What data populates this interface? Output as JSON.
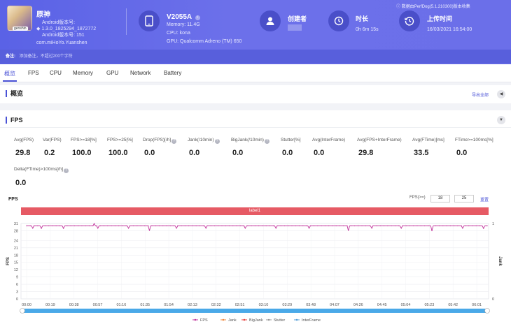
{
  "header": {
    "game_name": "原神",
    "android_version_label": "Android版本号:",
    "app_version": "1.3.0_1825294_1872772",
    "android_version_line": "Android版本号: 151",
    "package_name": "com.miHoYo.Yuanshen",
    "avatar_tag": "genshin",
    "device_name": "V2055A",
    "memory": "Memory: 11.4G",
    "cpu": "CPU: kona",
    "gpu": "GPU: Qualcomm Adreno (TM) 650",
    "creator_label": "创建者",
    "duration_label": "时长",
    "duration_value": "0h 6m 15s",
    "upload_label": "上传时间",
    "upload_value": "16/03/2021 16:54:00",
    "source_note": "数据由PerfDog(5.1.210300)版本收集",
    "remark_label": "备注:",
    "remark_placeholder": "添加备注，不超过200个字符"
  },
  "tabs": [
    {
      "label": "概览"
    },
    {
      "label": "FPS"
    },
    {
      "label": "CPU"
    },
    {
      "label": "Memory"
    },
    {
      "label": "GPU"
    },
    {
      "label": "Network"
    },
    {
      "label": "Battery"
    }
  ],
  "overview": {
    "title": "概览",
    "export_label": "导出全部"
  },
  "fps_section": {
    "title": "FPS",
    "stats_row1": [
      {
        "label": "Avg(FPS)",
        "value": "29.8",
        "help": false
      },
      {
        "label": "Var(FPS)",
        "value": "0.2",
        "help": false
      },
      {
        "label": "FPS>=18[%]",
        "value": "100.0",
        "help": false
      },
      {
        "label": "FPS>=25[%]",
        "value": "100.0",
        "help": false
      },
      {
        "label": "Drop(FPS)[/h]",
        "value": "0.0",
        "help": true
      },
      {
        "label": "Jank(/10min)",
        "value": "0.0",
        "help": true
      },
      {
        "label": "BigJank(/10min)",
        "value": "0.0",
        "help": true
      },
      {
        "label": "Stutter[%]",
        "value": "0.0",
        "help": false
      },
      {
        "label": "Avg(InterFrame)",
        "value": "0.0",
        "help": false
      },
      {
        "label": "Avg(FPS+InterFrame)",
        "value": "29.8",
        "help": false
      },
      {
        "label": "Avg(FTime)[ms]",
        "value": "33.5",
        "help": false
      },
      {
        "label": "FTime>=100ms[%]",
        "value": "0.0",
        "help": false
      }
    ],
    "stats_row2": [
      {
        "label": "Delta(FTime)>100ms[/h]",
        "value": "0.0",
        "help": true
      }
    ]
  },
  "chart_controls": {
    "title": "FPS",
    "fps_threshold_label": "FPS(>=)",
    "threshold_low": "18",
    "threshold_high": "25",
    "reset_label": "重置",
    "label_bar": "label1"
  },
  "chart_data": {
    "type": "line",
    "title": "FPS",
    "ylabel": "FPS",
    "y2label": "Jank",
    "ylim": [
      0,
      31
    ],
    "yticks": [
      0,
      3,
      6,
      9,
      12,
      15,
      18,
      21,
      24,
      28,
      31
    ],
    "y2ticks": [
      0,
      1
    ],
    "x_ticks": [
      "00:00",
      "00:19",
      "00:38",
      "00:57",
      "01:16",
      "01:35",
      "01:54",
      "02:13",
      "02:32",
      "02:51",
      "03:10",
      "03:29",
      "03:48",
      "04:07",
      "04:26",
      "04:45",
      "05:04",
      "05:23",
      "05:42",
      "06:01"
    ],
    "x_duration_s": 375,
    "series": [
      {
        "name": "FPS",
        "color": "#c2379d",
        "base_value": 30,
        "dips": [
          [
            5,
            29
          ],
          [
            12,
            29
          ],
          [
            30,
            29
          ],
          [
            55,
            31
          ],
          [
            58,
            29
          ],
          [
            60,
            30
          ],
          [
            83,
            29
          ],
          [
            100,
            28
          ],
          [
            122,
            29
          ],
          [
            146,
            29
          ],
          [
            178,
            29
          ],
          [
            203,
            29
          ],
          [
            230,
            29
          ],
          [
            262,
            28
          ],
          [
            281,
            29
          ],
          [
            305,
            29
          ],
          [
            330,
            28
          ],
          [
            355,
            29
          ],
          [
            372,
            29
          ]
        ]
      },
      {
        "name": "Jank",
        "color": "#f0883e"
      },
      {
        "name": "BigJank",
        "color": "#e8433f"
      },
      {
        "name": "Stutter",
        "color": "#999999"
      },
      {
        "name": "InterFrame",
        "color": "#5aa0d8"
      }
    ],
    "grid": true,
    "legend": "bottom"
  }
}
